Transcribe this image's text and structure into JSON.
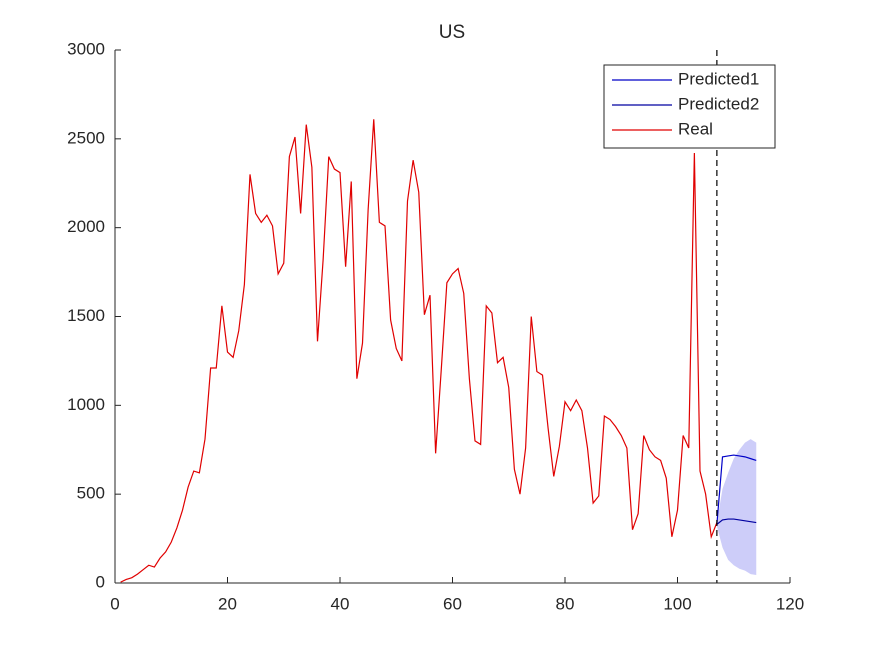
{
  "chart_data": {
    "type": "line",
    "title": "US",
    "xlim": [
      0,
      120
    ],
    "xticks": [
      0,
      20,
      40,
      60,
      80,
      100,
      120
    ],
    "ylim": [
      0,
      3000
    ],
    "yticks": [
      0,
      500,
      1000,
      1500,
      2000,
      2500,
      3000
    ],
    "legend": "northeast",
    "vline": 107,
    "band": {
      "color": "#c8c8f8",
      "x": [
        107,
        108,
        109,
        110,
        111,
        112,
        113,
        114
      ],
      "upper": [
        340,
        530,
        620,
        700,
        750,
        790,
        810,
        790
      ],
      "lower": [
        320,
        200,
        130,
        100,
        80,
        70,
        50,
        45
      ]
    },
    "series": [
      {
        "name": "Predicted1",
        "color": "#0000c8",
        "x": [
          107,
          108,
          109,
          110,
          111,
          112,
          113,
          114
        ],
        "values": [
          330,
          710,
          715,
          720,
          715,
          710,
          700,
          690
        ]
      },
      {
        "name": "Predicted2",
        "color": "#0000a0",
        "x": [
          107,
          108,
          109,
          110,
          111,
          112,
          113,
          114
        ],
        "values": [
          330,
          355,
          360,
          360,
          355,
          350,
          345,
          340
        ]
      },
      {
        "name": "Real",
        "color": "#e00000",
        "x": [
          1,
          2,
          3,
          4,
          5,
          6,
          7,
          8,
          9,
          10,
          11,
          12,
          13,
          14,
          15,
          16,
          17,
          18,
          19,
          20,
          21,
          22,
          23,
          24,
          25,
          26,
          27,
          28,
          29,
          30,
          31,
          32,
          33,
          34,
          35,
          36,
          37,
          38,
          39,
          40,
          41,
          42,
          43,
          44,
          45,
          46,
          47,
          48,
          49,
          50,
          51,
          52,
          53,
          54,
          55,
          56,
          57,
          58,
          59,
          60,
          61,
          62,
          63,
          64,
          65,
          66,
          67,
          68,
          69,
          70,
          71,
          72,
          73,
          74,
          75,
          76,
          77,
          78,
          79,
          80,
          81,
          82,
          83,
          84,
          85,
          86,
          87,
          88,
          89,
          90,
          91,
          92,
          93,
          94,
          95,
          96,
          97,
          98,
          99,
          100,
          101,
          102,
          103,
          104,
          105,
          106,
          107
        ],
        "values": [
          5,
          20,
          30,
          50,
          75,
          100,
          90,
          140,
          175,
          230,
          310,
          410,
          540,
          630,
          620,
          810,
          1210,
          1210,
          1560,
          1300,
          1270,
          1420,
          1680,
          2300,
          2080,
          2030,
          2070,
          2010,
          1740,
          1800,
          2400,
          2510,
          2080,
          2580,
          2340,
          1360,
          1820,
          2400,
          2330,
          2310,
          1780,
          2260,
          1150,
          1350,
          2100,
          2610,
          2030,
          2010,
          1480,
          1320,
          1250,
          2150,
          2380,
          2200,
          1510,
          1620,
          730,
          1200,
          1690,
          1740,
          1770,
          1630,
          1150,
          800,
          780,
          1560,
          1520,
          1240,
          1270,
          1100,
          640,
          500,
          760,
          1500,
          1190,
          1170,
          870,
          600,
          770,
          1020,
          970,
          1030,
          970,
          760,
          450,
          490,
          940,
          920,
          880,
          830,
          760,
          300,
          390,
          830,
          750,
          710,
          690,
          590,
          260,
          410,
          830,
          760,
          2420,
          630,
          500,
          260,
          340
        ]
      }
    ]
  }
}
